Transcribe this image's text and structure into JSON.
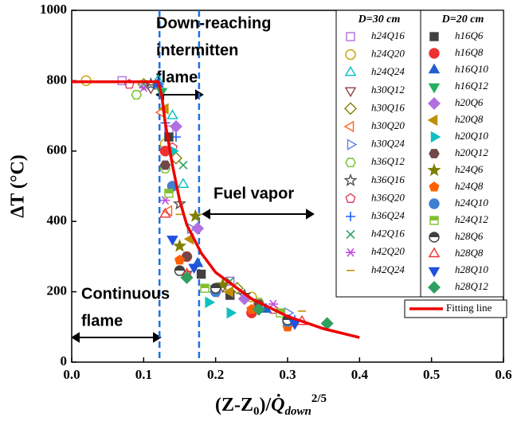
{
  "chart_data": {
    "type": "scatter",
    "ylabel": "ΔT (°C)",
    "xlabel": [
      "(Z-Z",
      "0",
      ")/",
      "Q̇",
      "down",
      "2/5"
    ],
    "xlim": [
      0,
      0.6
    ],
    "ylim": [
      0,
      1000
    ],
    "xticks": [
      {
        "value": 0,
        "label": "0.0"
      },
      0.1,
      0.2,
      0.3,
      0.4,
      0.5,
      0.6
    ],
    "yticks": [
      0,
      200,
      400,
      600,
      800,
      1000
    ],
    "vlines": [
      0.122,
      0.177
    ],
    "vline_color": "#1a73e8",
    "annotations": [
      [
        "Down-reaching",
        "intermitten",
        "flame"
      ],
      [
        "Fuel vapor"
      ],
      [
        "Continuous",
        "flame"
      ]
    ],
    "legend_titles": [
      "D=30 cm",
      "D=20 cm"
    ],
    "series": [
      {
        "name": "h24Q16",
        "group": 0,
        "marker": "square",
        "filled": false,
        "color": "#b070e0",
        "x": [
          0.07,
          0.135,
          0.22
        ],
        "values": [
          800,
          660,
          230
        ]
      },
      {
        "name": "h24Q20",
        "group": 0,
        "marker": "circle",
        "filled": false,
        "color": "#c8a000",
        "x": [
          0.02,
          0.13,
          0.25
        ],
        "values": [
          800,
          620,
          185
        ]
      },
      {
        "name": "h24Q24",
        "group": 0,
        "marker": "triangle-up",
        "filled": false,
        "color": "#00c0c0",
        "x": [
          0.12,
          0.14,
          0.155
        ],
        "values": [
          800,
          700,
          505
        ]
      },
      {
        "name": "h30Q12",
        "group": 0,
        "marker": "triangle-down",
        "filled": false,
        "color": "#8b4040",
        "x": [
          0.11,
          0.16,
          0.21
        ],
        "values": [
          780,
          250,
          215
        ]
      },
      {
        "name": "h30Q16",
        "group": 0,
        "marker": "diamond",
        "filled": false,
        "color": "#808000",
        "x": [
          0.1,
          0.145,
          0.23
        ],
        "values": [
          790,
          580,
          210
        ]
      },
      {
        "name": "h30Q20",
        "group": 0,
        "marker": "triangle-left",
        "filled": false,
        "color": "#ff6020",
        "x": [
          0.125,
          0.135,
          0.2
        ],
        "values": [
          710,
          430,
          200
        ]
      },
      {
        "name": "h30Q24",
        "group": 0,
        "marker": "triangle-right",
        "filled": false,
        "color": "#6080e0",
        "x": [
          0.12,
          0.165,
          0.3
        ],
        "values": [
          790,
          380,
          140
        ]
      },
      {
        "name": "h36Q12",
        "group": 0,
        "marker": "hexagon",
        "filled": false,
        "color": "#70c020",
        "x": [
          0.09,
          0.13,
          0.26
        ],
        "values": [
          760,
          550,
          170
        ]
      },
      {
        "name": "h36Q16",
        "group": 0,
        "marker": "star",
        "filled": false,
        "color": "#505050",
        "x": [
          0.11,
          0.15,
          0.24
        ],
        "values": [
          790,
          450,
          190
        ]
      },
      {
        "name": "h36Q20",
        "group": 0,
        "marker": "pentagon",
        "filled": false,
        "color": "#e04060",
        "x": [
          0.08,
          0.14,
          0.28
        ],
        "values": [
          790,
          610,
          150
        ]
      },
      {
        "name": "h36Q24",
        "group": 0,
        "marker": "plus",
        "filled": false,
        "color": "#2060ff",
        "x": [
          0.13,
          0.145,
          0.31
        ],
        "values": [
          680,
          640,
          120
        ]
      },
      {
        "name": "h42Q16",
        "group": 0,
        "marker": "cross",
        "filled": false,
        "color": "#30a060",
        "x": [
          0.1,
          0.155,
          0.22
        ],
        "values": [
          790,
          560,
          230
        ]
      },
      {
        "name": "h42Q20",
        "group": 0,
        "marker": "asterisk",
        "filled": false,
        "color": "#c050e0",
        "x": [
          0.1,
          0.13,
          0.28
        ],
        "values": [
          780,
          460,
          165
        ]
      },
      {
        "name": "h42Q24",
        "group": 0,
        "marker": "dash",
        "filled": false,
        "color": "#c09000",
        "x": [
          0.05,
          0.15,
          0.32
        ],
        "values": [
          795,
          420,
          145
        ]
      },
      {
        "name": "h16Q6",
        "group": 1,
        "marker": "square",
        "filled": true,
        "color": "#404040",
        "x": [
          0.135,
          0.18,
          0.22
        ],
        "values": [
          640,
          250,
          190
        ]
      },
      {
        "name": "h16Q8",
        "group": 1,
        "marker": "circle",
        "filled": true,
        "color": "#ee3030",
        "x": [
          0.13,
          0.16,
          0.25
        ],
        "values": [
          600,
          300,
          140
        ]
      },
      {
        "name": "h16Q10",
        "group": 1,
        "marker": "triangle-up",
        "filled": true,
        "color": "#2060d0",
        "x": [
          0.12,
          0.175,
          0.27
        ],
        "values": [
          790,
          280,
          150
        ]
      },
      {
        "name": "h16Q12",
        "group": 1,
        "marker": "triangle-down",
        "filled": true,
        "color": "#20b060",
        "x": [
          0.125,
          0.2,
          0.3
        ],
        "values": [
          770,
          210,
          115
        ]
      },
      {
        "name": "h20Q6",
        "group": 1,
        "marker": "diamond",
        "filled": true,
        "color": "#b070e0",
        "x": [
          0.145,
          0.175,
          0.24
        ],
        "values": [
          670,
          380,
          180
        ]
      },
      {
        "name": "h20Q8",
        "group": 1,
        "marker": "triangle-left",
        "filled": true,
        "color": "#c09000",
        "x": [
          0.13,
          0.165,
          0.22
        ],
        "values": [
          720,
          350,
          200
        ]
      },
      {
        "name": "h20Q10",
        "group": 1,
        "marker": "triangle-right",
        "filled": true,
        "color": "#10c0c0",
        "x": [
          0.14,
          0.19,
          0.22
        ],
        "values": [
          600,
          170,
          140
        ]
      },
      {
        "name": "h20Q12",
        "group": 1,
        "marker": "hexagon",
        "filled": true,
        "color": "#704848",
        "x": [
          0.13,
          0.16,
          0.26
        ],
        "values": [
          560,
          300,
          165
        ]
      },
      {
        "name": "h24Q6",
        "group": 1,
        "marker": "star",
        "filled": true,
        "color": "#808000",
        "x": [
          0.172,
          0.15,
          0.21
        ],
        "values": [
          415,
          330,
          220
        ]
      },
      {
        "name": "h24Q8",
        "group": 1,
        "marker": "pentagon",
        "filled": true,
        "color": "#ff6000",
        "x": [
          0.15,
          0.25,
          0.3
        ],
        "values": [
          290,
          150,
          100
        ]
      },
      {
        "name": "h24Q10",
        "group": 1,
        "marker": "circle",
        "filled": true,
        "color": "#4080d0",
        "x": [
          0.14,
          0.2,
          0.3
        ],
        "values": [
          500,
          200,
          115
        ]
      },
      {
        "name": "h24Q12",
        "group": 1,
        "marker": "square-half",
        "filled": true,
        "color": "#80c030",
        "x": [
          0.135,
          0.185,
          0.29
        ],
        "values": [
          480,
          210,
          140
        ]
      },
      {
        "name": "h28Q6",
        "group": 1,
        "marker": "circle-half",
        "filled": true,
        "color": "#404040",
        "x": [
          0.15,
          0.2,
          0.3
        ],
        "values": [
          260,
          210,
          120
        ]
      },
      {
        "name": "h28Q8",
        "group": 1,
        "marker": "triangle-up",
        "filled": false,
        "color": "#ee3030",
        "x": [
          0.13,
          0.16,
          0.32
        ],
        "values": [
          420,
          250,
          115
        ]
      },
      {
        "name": "h28Q10",
        "group": 1,
        "marker": "triangle-down",
        "filled": true,
        "color": "#2050e0",
        "x": [
          0.14,
          0.17,
          0.31
        ],
        "values": [
          350,
          270,
          110
        ]
      },
      {
        "name": "h28Q12",
        "group": 1,
        "marker": "diamond",
        "filled": true,
        "color": "#30a060",
        "x": [
          0.16,
          0.26,
          0.355
        ],
        "values": [
          240,
          150,
          110
        ]
      }
    ],
    "fit": {
      "name": "Fitting line",
      "color": "#ee0000",
      "x": [
        0,
        0.12,
        0.125,
        0.13,
        0.14,
        0.15,
        0.16,
        0.18,
        0.2,
        0.25,
        0.3,
        0.35,
        0.4
      ],
      "values": [
        797,
        797,
        760,
        680,
        560,
        460,
        390,
        310,
        255,
        180,
        130,
        95,
        70
      ]
    }
  }
}
